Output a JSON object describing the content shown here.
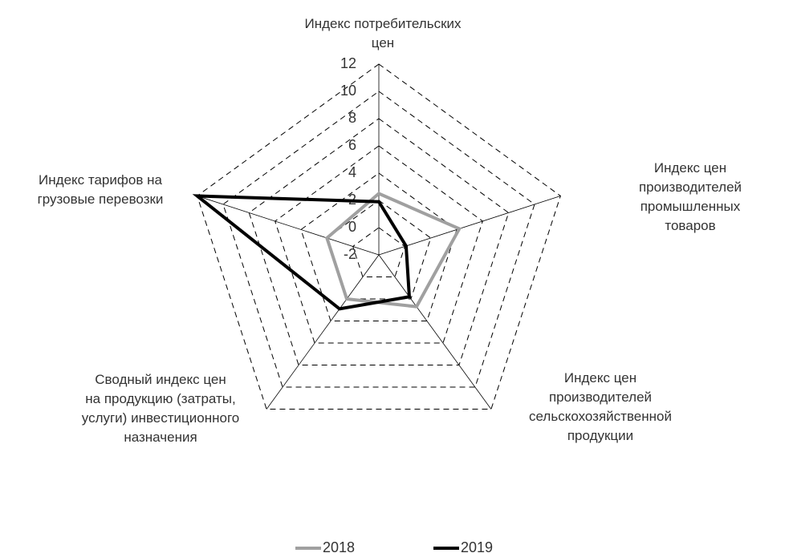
{
  "chart_data": {
    "type": "radar",
    "categories": [
      "Индекс потребительских\nцен",
      "Индекс цен\nпроизводителей\nпромышленных товаров",
      "Индекс цен\nпроизводителей\nсельскохозяйственной\nпродукции",
      "Сводный индекс цен\nна продукцию (затраты,\nуслуги)  инвестиционного\nназначения",
      "Индекс тарифов на\nгрузовые перевозки"
    ],
    "series": [
      {
        "name": "2018",
        "color": "#a0a0a0",
        "values": [
          2.5,
          4.2,
          2.7,
          2.0,
          2.0
        ]
      },
      {
        "name": "2019",
        "color": "#000000",
        "values": [
          1.9,
          0.1,
          1.8,
          2.9,
          12
        ]
      }
    ],
    "ylim": [
      -2,
      12
    ],
    "yticks": [
      -2,
      0,
      2,
      4,
      6,
      8,
      10,
      12
    ],
    "grid": true,
    "legend": "bottom"
  }
}
